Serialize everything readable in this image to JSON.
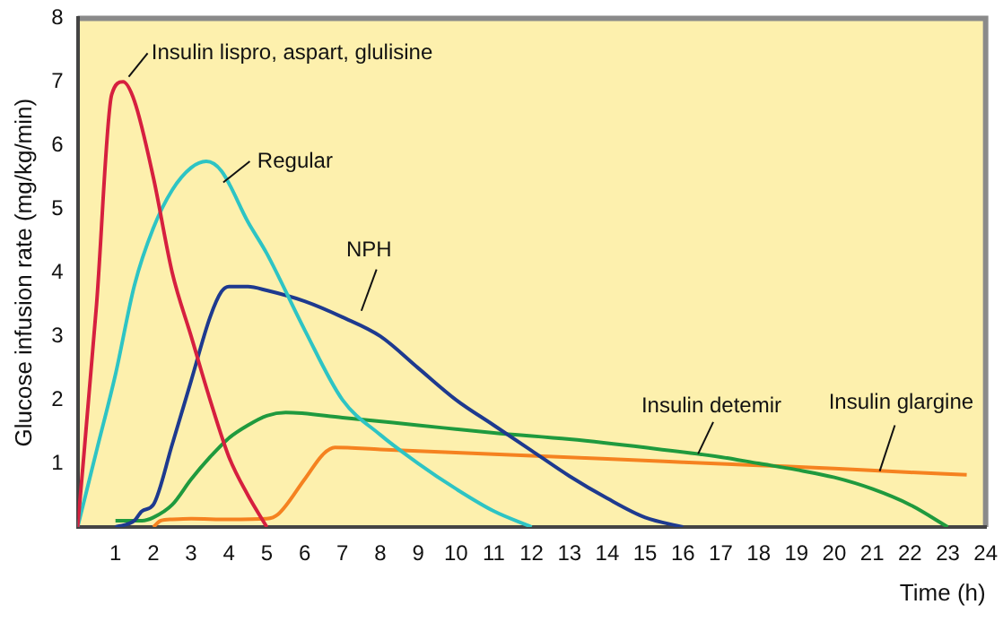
{
  "chart_data": {
    "type": "line",
    "xlabel": "Time (h)",
    "ylabel": "Glucose infusion rate (mg/kg/min)",
    "xlim": [
      0,
      24
    ],
    "ylim": [
      0,
      8
    ],
    "xticks": [
      1,
      2,
      3,
      4,
      5,
      6,
      7,
      8,
      9,
      10,
      11,
      12,
      13,
      14,
      15,
      16,
      17,
      18,
      19,
      20,
      21,
      22,
      23,
      24
    ],
    "yticks": [
      1,
      2,
      3,
      4,
      5,
      6,
      7,
      8
    ],
    "grid": false,
    "legend": false,
    "marker": "none",
    "line_style": "solid",
    "series": [
      {
        "name": "Insulin lispro, aspart, glulisine",
        "color": "#d6203f",
        "x": [
          0,
          0.5,
          0.9,
          1.2,
          1.5,
          2,
          2.5,
          3,
          3.5,
          4,
          4.5,
          5
        ],
        "values": [
          0,
          3.5,
          6.8,
          7.0,
          6.7,
          5.5,
          4.0,
          3.0,
          2.0,
          1.1,
          0.5,
          0
        ]
      },
      {
        "name": "Regular",
        "color": "#2ec4c4",
        "x": [
          0,
          0.5,
          1,
          1.5,
          2,
          2.5,
          3,
          3.4,
          3.8,
          4.5,
          5,
          6,
          7,
          8,
          9,
          10,
          11,
          12
        ],
        "values": [
          0,
          1.2,
          2.4,
          3.8,
          4.7,
          5.3,
          5.65,
          5.75,
          5.6,
          4.8,
          4.3,
          3.1,
          2.0,
          1.45,
          1.0,
          0.6,
          0.25,
          0
        ]
      },
      {
        "name": "NPH",
        "color": "#1e3a8f",
        "x": [
          1,
          1.5,
          1.7,
          2,
          2.5,
          3,
          3.5,
          3.8,
          4,
          4.5,
          5,
          6,
          7,
          8,
          9,
          10,
          11,
          12,
          13,
          14,
          15,
          16
        ],
        "values": [
          0,
          0.1,
          0.25,
          0.35,
          1.3,
          2.3,
          3.3,
          3.7,
          3.78,
          3.78,
          3.72,
          3.55,
          3.3,
          3.0,
          2.5,
          2.0,
          1.6,
          1.2,
          0.8,
          0.45,
          0.15,
          0
        ]
      },
      {
        "name": "Insulin detemir",
        "color": "#1f9a3e",
        "x": [
          1,
          1.7,
          2,
          2.5,
          3,
          3.5,
          4,
          4.5,
          5,
          5.5,
          7,
          9,
          11,
          13,
          15,
          17,
          18,
          19,
          20,
          21,
          22,
          23
        ],
        "values": [
          0.1,
          0.1,
          0.15,
          0.35,
          0.75,
          1.1,
          1.4,
          1.6,
          1.75,
          1.8,
          1.72,
          1.6,
          1.48,
          1.38,
          1.25,
          1.1,
          1.0,
          0.9,
          0.78,
          0.6,
          0.35,
          0
        ]
      },
      {
        "name": "Insulin glargine",
        "color": "#f58220",
        "x": [
          2,
          2.2,
          2.5,
          3,
          4,
          5,
          5.3,
          6,
          6.5,
          6.8,
          8,
          10,
          12,
          14,
          16,
          18,
          20,
          22,
          23.5
        ],
        "values": [
          0,
          0.1,
          0.12,
          0.13,
          0.12,
          0.13,
          0.2,
          0.75,
          1.15,
          1.25,
          1.22,
          1.17,
          1.12,
          1.07,
          1.02,
          0.97,
          0.92,
          0.86,
          0.82
        ]
      }
    ]
  }
}
